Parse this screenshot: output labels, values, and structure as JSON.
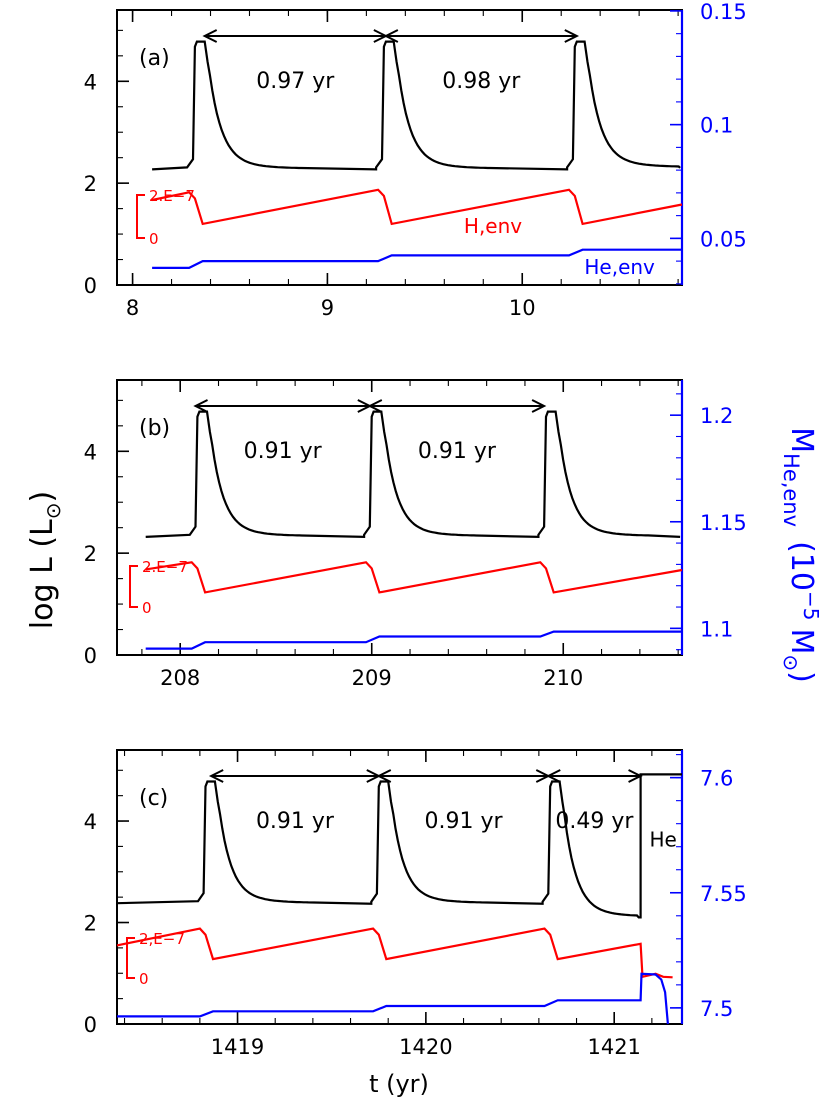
{
  "figure": {
    "shared_ylabel_main": "log L (L",
    "shared_ylabel_sun": "⊙",
    "shared_ylabel_close": ")",
    "shared_xlabel": "t (yr)",
    "right_axis_label_main": "M",
    "right_axis_label_sub": "He,env",
    "right_axis_label_unit_a": "(10",
    "right_axis_label_exp": "−5",
    "right_axis_label_unit_b": "M",
    "right_axis_label_sun": "⊙",
    "right_axis_label_close": ")"
  },
  "colors": {
    "luminosity": "#000000",
    "hydrogen_envelope": "#ff0000",
    "helium_envelope": "#0000ff"
  },
  "chart_data": [
    {
      "type": "line",
      "panel_label": "(a)",
      "xlim": [
        7.92,
        10.82
      ],
      "xticks": [
        8,
        9,
        10
      ],
      "xtick_labels": [
        "8",
        "9",
        "10"
      ],
      "ylim": [
        0,
        5.4
      ],
      "yticks": [
        0,
        2,
        4
      ],
      "ytick_labels": [
        "0",
        "2",
        "4"
      ],
      "y2lim": [
        0.0295,
        0.1504
      ],
      "y2ticks": [
        0.05,
        0.1,
        0.15
      ],
      "y2tick_labels": [
        "0.05",
        "0.1",
        "0.15"
      ],
      "t_start": 8.1,
      "flash_times": [
        8.31,
        9.28,
        10.26
      ],
      "intervals": [
        {
          "from": 8.37,
          "to": 9.3,
          "label": "0.97  yr"
        },
        {
          "from": 9.3,
          "to": 10.28,
          "label": "0.98  yr"
        }
      ],
      "lum_quiescent": [
        2.27,
        2.27,
        2.27
      ],
      "lum_tail_end": 2.3,
      "lum_peak": 4.78,
      "h_env": {
        "start": 1.67,
        "before_flash": [
          1.82,
          1.87,
          1.87
        ],
        "after_flash": [
          1.2,
          1.2,
          1.2
        ],
        "end": 1.58
      },
      "he_env_levels": [
        0.037,
        0.04,
        0.0425,
        0.045
      ],
      "he_env_start": 8.1,
      "he_env_end": 10.82,
      "scale_bar": {
        "top_label": "2.E−7",
        "bottom_label": "0"
      },
      "series_labels": {
        "h_env": "H,env",
        "he_env": "He,env"
      }
    },
    {
      "type": "line",
      "panel_label": "(b)",
      "xlim": [
        207.67,
        210.62
      ],
      "xticks": [
        208,
        209,
        210
      ],
      "xtick_labels": [
        "208",
        "209",
        "210"
      ],
      "ylim": [
        0,
        5.4
      ],
      "yticks": [
        0,
        2,
        4
      ],
      "ytick_labels": [
        "0",
        "2",
        "4"
      ],
      "y2lim": [
        1.0875,
        1.2165
      ],
      "y2ticks": [
        1.1,
        1.15,
        1.2
      ],
      "y2tick_labels": [
        "1.1",
        "1.15",
        "1.2"
      ],
      "t_start": 207.82,
      "flash_times": [
        208.08,
        208.99,
        209.9
      ],
      "intervals": [
        {
          "from": 208.08,
          "to": 208.99,
          "label": "0.91  yr"
        },
        {
          "from": 208.99,
          "to": 209.9,
          "label": "0.91  yr"
        }
      ],
      "lum_quiescent": [
        2.32,
        2.32,
        2.32
      ],
      "lum_tail_end": 2.32,
      "lum_peak": 4.78,
      "h_env": {
        "start": 1.68,
        "before_flash": [
          1.82,
          1.82,
          1.82
        ],
        "after_flash": [
          1.23,
          1.23,
          1.23
        ],
        "end": 1.67
      },
      "he_env_levels": [
        1.0905,
        1.0935,
        1.0962,
        1.0985
      ],
      "he_env_start": 207.82,
      "he_env_end": 210.62,
      "scale_bar": {
        "top_label": "2.E−7",
        "bottom_label": "0"
      }
    },
    {
      "type": "line",
      "panel_label": "(c)",
      "xlim": [
        1418.36,
        1421.36
      ],
      "xticks": [
        1419,
        1420,
        1421
      ],
      "xtick_labels": [
        "1419",
        "1420",
        "1421"
      ],
      "ylim": [
        0,
        5.4
      ],
      "yticks": [
        0,
        2,
        4
      ],
      "ytick_labels": [
        "0",
        "2",
        "4"
      ],
      "y2lim": [
        7.493,
        7.612
      ],
      "y2ticks": [
        7.5,
        7.55,
        7.6
      ],
      "y2tick_labels": [
        "7.5",
        "7.55",
        "7.6"
      ],
      "t_start": 1418.36,
      "flash_times": [
        1418.82,
        1419.74,
        1420.65
      ],
      "helium_flash_time": 1421.14,
      "intervals": [
        {
          "from": 1418.86,
          "to": 1419.75,
          "label": "0.91  yr"
        },
        {
          "from": 1419.75,
          "to": 1420.65,
          "label": "0.91  yr"
        },
        {
          "from": 1420.65,
          "to": 1421.14,
          "label": "0.49  yr"
        }
      ],
      "lum_quiescent": [
        2.38,
        2.37,
        2.37
      ],
      "lum_tail_end": 2.1,
      "lum_peak": 4.78,
      "lum_helium_plateau": 4.92,
      "h_env": {
        "start": 1.55,
        "before_flash": [
          1.88,
          1.88,
          1.88
        ],
        "after_flash": [
          1.28,
          1.28,
          1.28
        ],
        "end": 1.58,
        "after_helium": 0.93
      },
      "he_env_levels": [
        7.4963,
        7.4985,
        7.5008,
        7.5033
      ],
      "he_env_peak": 7.5148,
      "he_env_start": 1418.36,
      "scale_bar": {
        "top_label": "2,E−7",
        "bottom_label": "0"
      },
      "series_labels": {
        "helium_flash": "He"
      }
    }
  ]
}
